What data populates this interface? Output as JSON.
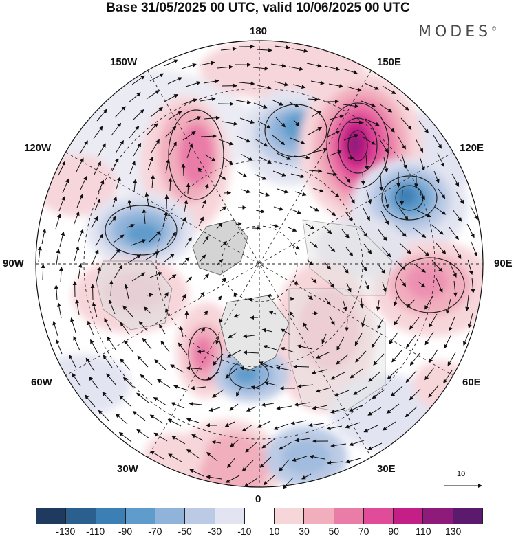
{
  "title": "Base 31/05/2025 00 UTC, valid 10/06/2025 00 UTC",
  "logo": "MODES",
  "logo_mark": "©",
  "longitude_labels": {
    "top": "180",
    "bottom": "0",
    "left": "90W",
    "right": "90E",
    "upper_left": "150W",
    "upper_right": "150E",
    "mid_upper_left": "120W",
    "mid_upper_right": "120E",
    "mid_lower_left": "60W",
    "mid_lower_right": "60E",
    "lower_left": "30W",
    "lower_right": "30E"
  },
  "reference_vector_label": "10",
  "colorbar": {
    "colors": [
      "#1e3a5f",
      "#2a5f8e",
      "#3c7fb5",
      "#5f9bcb",
      "#8fb3d9",
      "#bccbe5",
      "#e2e4f1",
      "#ffffff",
      "#f7d6da",
      "#f1aebd",
      "#ea7ca8",
      "#e04c98",
      "#c41f86",
      "#8e1a7a",
      "#5c1a6e"
    ],
    "ticks": [
      "-130",
      "-110",
      "-90",
      "-70",
      "-50",
      "-30",
      "-10",
      "10",
      "30",
      "50",
      "70",
      "90",
      "110",
      "130"
    ]
  }
}
